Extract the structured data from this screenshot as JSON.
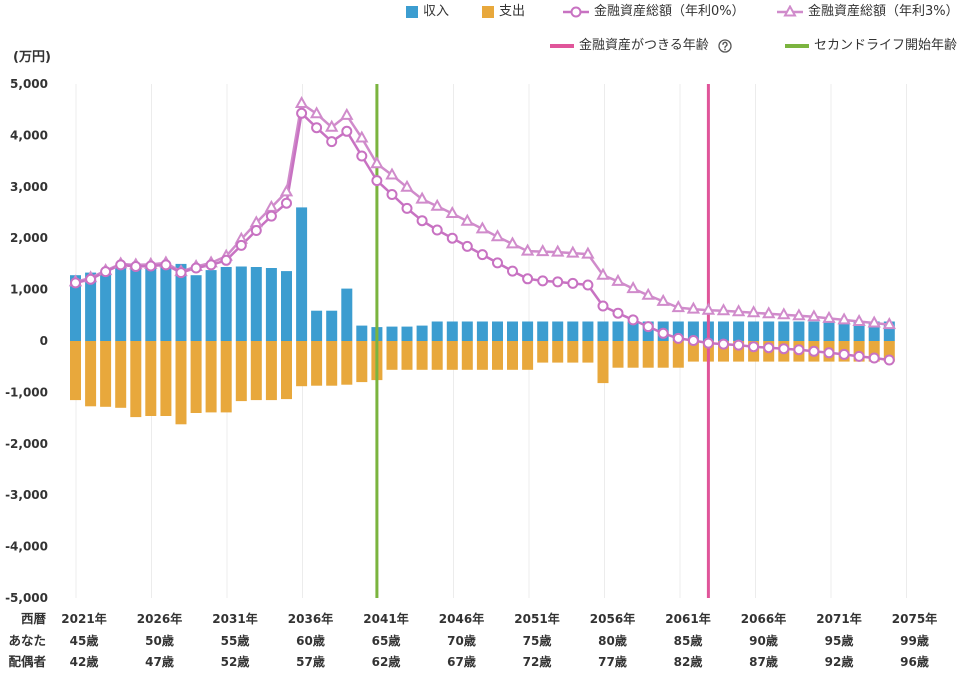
{
  "chart_data": {
    "type": "bar",
    "ylabel": "(万円)",
    "ylim": [
      -5000,
      5000
    ],
    "grid": true,
    "y_tick_values": [
      5000,
      4000,
      3000,
      2000,
      1000,
      0,
      -1000,
      -2000,
      -3000,
      -4000,
      -5000
    ],
    "y_tick_labels": [
      "5,000",
      "4,000",
      "3,000",
      "2,000",
      "1,000",
      "0",
      "-1,000",
      "-2,000",
      "-3,000",
      "-4,000",
      "-5,000"
    ],
    "categories": [
      2021,
      2022,
      2023,
      2024,
      2025,
      2026,
      2027,
      2028,
      2029,
      2030,
      2031,
      2032,
      2033,
      2034,
      2035,
      2036,
      2037,
      2038,
      2039,
      2040,
      2041,
      2042,
      2043,
      2044,
      2045,
      2046,
      2047,
      2048,
      2049,
      2050,
      2051,
      2052,
      2053,
      2054,
      2055,
      2056,
      2057,
      2058,
      2059,
      2060,
      2061,
      2062,
      2063,
      2064,
      2065,
      2066,
      2067,
      2068,
      2069,
      2070,
      2071,
      2072,
      2073,
      2074,
      2075
    ],
    "x_tick_labels": [
      "2021年",
      "2026年",
      "2031年",
      "2036年",
      "2041年",
      "2046年",
      "2051年",
      "2056年",
      "2061年",
      "2066年",
      "2071年",
      "2075年"
    ],
    "row_labels": {
      "year": "西暦",
      "you": "あなた",
      "spouse": "配偶者"
    },
    "you_ages": [
      "45歳",
      "50歳",
      "55歳",
      "60歳",
      "65歳",
      "70歳",
      "75歳",
      "80歳",
      "85歳",
      "90歳",
      "95歳",
      "99歳"
    ],
    "spouse_ages": [
      "42歳",
      "47歳",
      "52歳",
      "57歳",
      "62歳",
      "67歳",
      "72歳",
      "77歳",
      "82歳",
      "87歳",
      "92歳",
      "96歳"
    ],
    "bar_series": [
      {
        "name": "収入",
        "color": "#3c9dd0",
        "values": [
          1280,
          1330,
          1300,
          1440,
          1470,
          1460,
          1470,
          1500,
          1280,
          1380,
          1440,
          1450,
          1440,
          1420,
          1360,
          2600,
          590,
          590,
          1020,
          300,
          270,
          280,
          280,
          300,
          380,
          380,
          380,
          380,
          380,
          380,
          380,
          380,
          380,
          380,
          380,
          380,
          380,
          380,
          380,
          380,
          380,
          380,
          380,
          380,
          380,
          380,
          380,
          380,
          380,
          380,
          380,
          380,
          380,
          380,
          380
        ]
      },
      {
        "name": "支出",
        "color": "#e8a83c",
        "values": [
          -1150,
          -1270,
          -1280,
          -1300,
          -1480,
          -1460,
          -1460,
          -1620,
          -1400,
          -1390,
          -1390,
          -1170,
          -1150,
          -1150,
          -1130,
          -880,
          -870,
          -870,
          -850,
          -800,
          -760,
          -560,
          -560,
          -560,
          -560,
          -560,
          -560,
          -560,
          -560,
          -560,
          -560,
          -420,
          -420,
          -420,
          -420,
          -820,
          -520,
          -520,
          -520,
          -520,
          -520,
          -400,
          -400,
          -400,
          -400,
          -400,
          -400,
          -400,
          -400,
          -400,
          -400,
          -400,
          -400,
          -400,
          -400
        ]
      }
    ],
    "line_series": [
      {
        "name": "金融資産総額（年利0%）",
        "color": "#c872c2",
        "marker_icon": "circle",
        "values": [
          1130,
          1200,
          1350,
          1480,
          1450,
          1460,
          1480,
          1330,
          1420,
          1480,
          1570,
          1860,
          2150,
          2430,
          2680,
          4430,
          4150,
          3880,
          4080,
          3600,
          3120,
          2850,
          2580,
          2340,
          2160,
          2000,
          1840,
          1680,
          1520,
          1360,
          1210,
          1170,
          1150,
          1120,
          1090,
          680,
          540,
          410,
          280,
          150,
          50,
          10,
          -40,
          -60,
          -80,
          -110,
          -130,
          -150,
          -170,
          -200,
          -230,
          -260,
          -300,
          -330,
          -370
        ]
      },
      {
        "name": "金融資産総額（年利3%）",
        "color": "#d08bcb",
        "marker_icon": "triangle",
        "values": [
          1150,
          1230,
          1370,
          1500,
          1480,
          1490,
          1520,
          1350,
          1450,
          1520,
          1650,
          1980,
          2300,
          2600,
          2900,
          4620,
          4420,
          4160,
          4390,
          3950,
          3450,
          3230,
          2990,
          2760,
          2620,
          2480,
          2330,
          2180,
          2030,
          1890,
          1750,
          1740,
          1730,
          1710,
          1690,
          1280,
          1160,
          1020,
          890,
          770,
          650,
          620,
          600,
          590,
          570,
          550,
          530,
          510,
          490,
          470,
          440,
          410,
          380,
          350,
          320
        ]
      }
    ],
    "age_markers": {
      "funds_depleted": {
        "name": "金融資産がつきる年齢",
        "year": 2063,
        "color": "#e0559a"
      },
      "second_life_start": {
        "name": "セカンドライフ開始年齢",
        "year": 2041,
        "color": "#7bb43f"
      }
    }
  }
}
